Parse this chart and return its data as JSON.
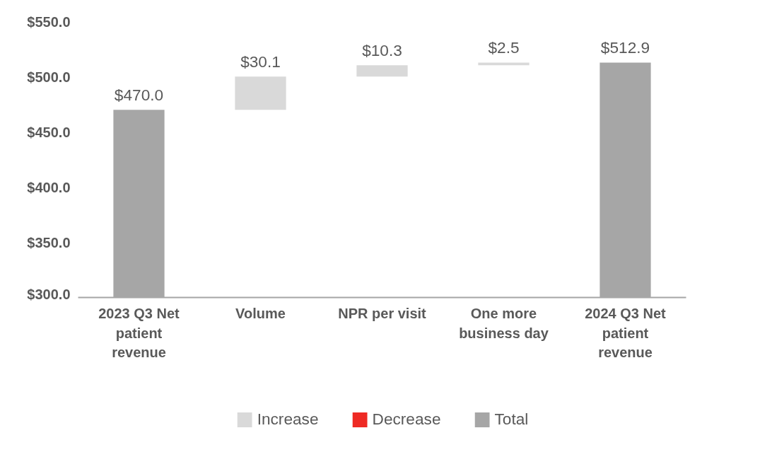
{
  "chart_data": {
    "type": "bar",
    "categories": [
      "2023 Q3 Net patient revenue",
      "Volume",
      "NPR per visit",
      "One more business day",
      "2024 Q3 Net patient revenue"
    ],
    "series": [
      {
        "name": "Increase",
        "color": "#d9d9d9",
        "base": [
          null,
          470.0,
          500.1,
          510.4,
          null
        ],
        "values": [
          null,
          30.1,
          10.3,
          2.5,
          null
        ],
        "value_labels": [
          null,
          "$30.1",
          "$10.3",
          "$2.5",
          null
        ]
      },
      {
        "name": "Decrease",
        "color": "#ee2a24",
        "values": [
          null,
          null,
          null,
          null,
          null
        ]
      },
      {
        "name": "Total",
        "color": "#a6a6a6",
        "values": [
          470.0,
          null,
          null,
          null,
          512.9
        ],
        "value_labels": [
          "$470.0",
          null,
          null,
          null,
          "$512.9"
        ]
      }
    ],
    "ylim": [
      300,
      550
    ],
    "yticks": [
      {
        "value": 300,
        "label": "$300.0"
      },
      {
        "value": 350,
        "label": "$350.0"
      },
      {
        "value": 400,
        "label": "$400.0"
      },
      {
        "value": 450,
        "label": "$450.0"
      },
      {
        "value": 500,
        "label": "$500.0"
      },
      {
        "value": 550,
        "label": "$550.0"
      }
    ],
    "grid": false,
    "legend": "bottom"
  }
}
